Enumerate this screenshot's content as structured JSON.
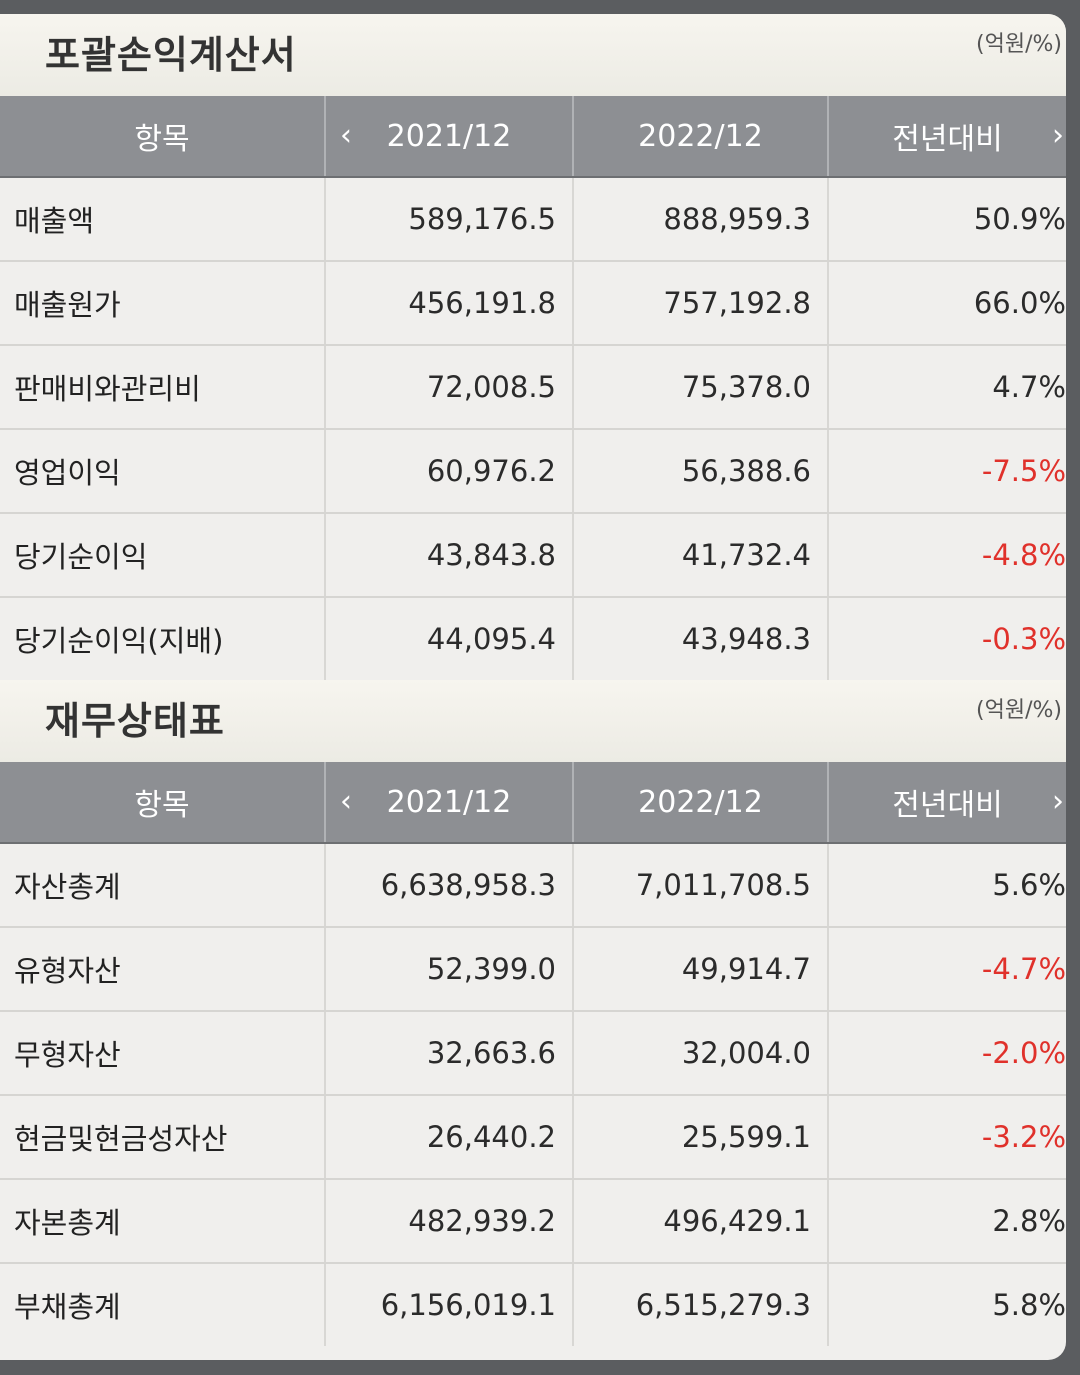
{
  "sections": [
    {
      "title": "포괄손익계산서",
      "unit": "(억원/%)",
      "headers": [
        "항목",
        "2021/12",
        "2022/12",
        "전년대비"
      ],
      "rows": [
        {
          "label": "매출액",
          "v2021": "589,176.5",
          "v2022": "888,959.3",
          "yoy": "50.9%",
          "neg": false
        },
        {
          "label": "매출원가",
          "v2021": "456,191.8",
          "v2022": "757,192.8",
          "yoy": "66.0%",
          "neg": false
        },
        {
          "label": "판매비와관리비",
          "v2021": "72,008.5",
          "v2022": "75,378.0",
          "yoy": "4.7%",
          "neg": false
        },
        {
          "label": "영업이익",
          "v2021": "60,976.2",
          "v2022": "56,388.6",
          "yoy": "-7.5%",
          "neg": true
        },
        {
          "label": "당기순이익",
          "v2021": "43,843.8",
          "v2022": "41,732.4",
          "yoy": "-4.8%",
          "neg": true
        },
        {
          "label": "당기순이익(지배)",
          "v2021": "44,095.4",
          "v2022": "43,948.3",
          "yoy": "-0.3%",
          "neg": true
        }
      ]
    },
    {
      "title": "재무상태표",
      "unit": "(억원/%)",
      "headers": [
        "항목",
        "2021/12",
        "2022/12",
        "전년대비"
      ],
      "rows": [
        {
          "label": "자산총계",
          "v2021": "6,638,958.3",
          "v2022": "7,011,708.5",
          "yoy": "5.6%",
          "neg": false
        },
        {
          "label": "유형자산",
          "v2021": "52,399.0",
          "v2022": "49,914.7",
          "yoy": "-4.7%",
          "neg": true
        },
        {
          "label": "무형자산",
          "v2021": "32,663.6",
          "v2022": "32,004.0",
          "yoy": "-2.0%",
          "neg": true
        },
        {
          "label": "현금및현금성자산",
          "v2021": "26,440.2",
          "v2022": "25,599.1",
          "yoy": "-3.2%",
          "neg": true
        },
        {
          "label": "자본총계",
          "v2021": "482,939.2",
          "v2022": "496,429.1",
          "yoy": "2.8%",
          "neg": false
        },
        {
          "label": "부채총계",
          "v2021": "6,156,019.1",
          "v2022": "6,515,279.3",
          "yoy": "5.8%",
          "neg": false
        }
      ]
    }
  ],
  "icons": {
    "prev": "chevron-left-icon",
    "next": "chevron-right-icon"
  },
  "colors": {
    "header_bg": "#8d8f93",
    "negative": "#e0312b"
  }
}
